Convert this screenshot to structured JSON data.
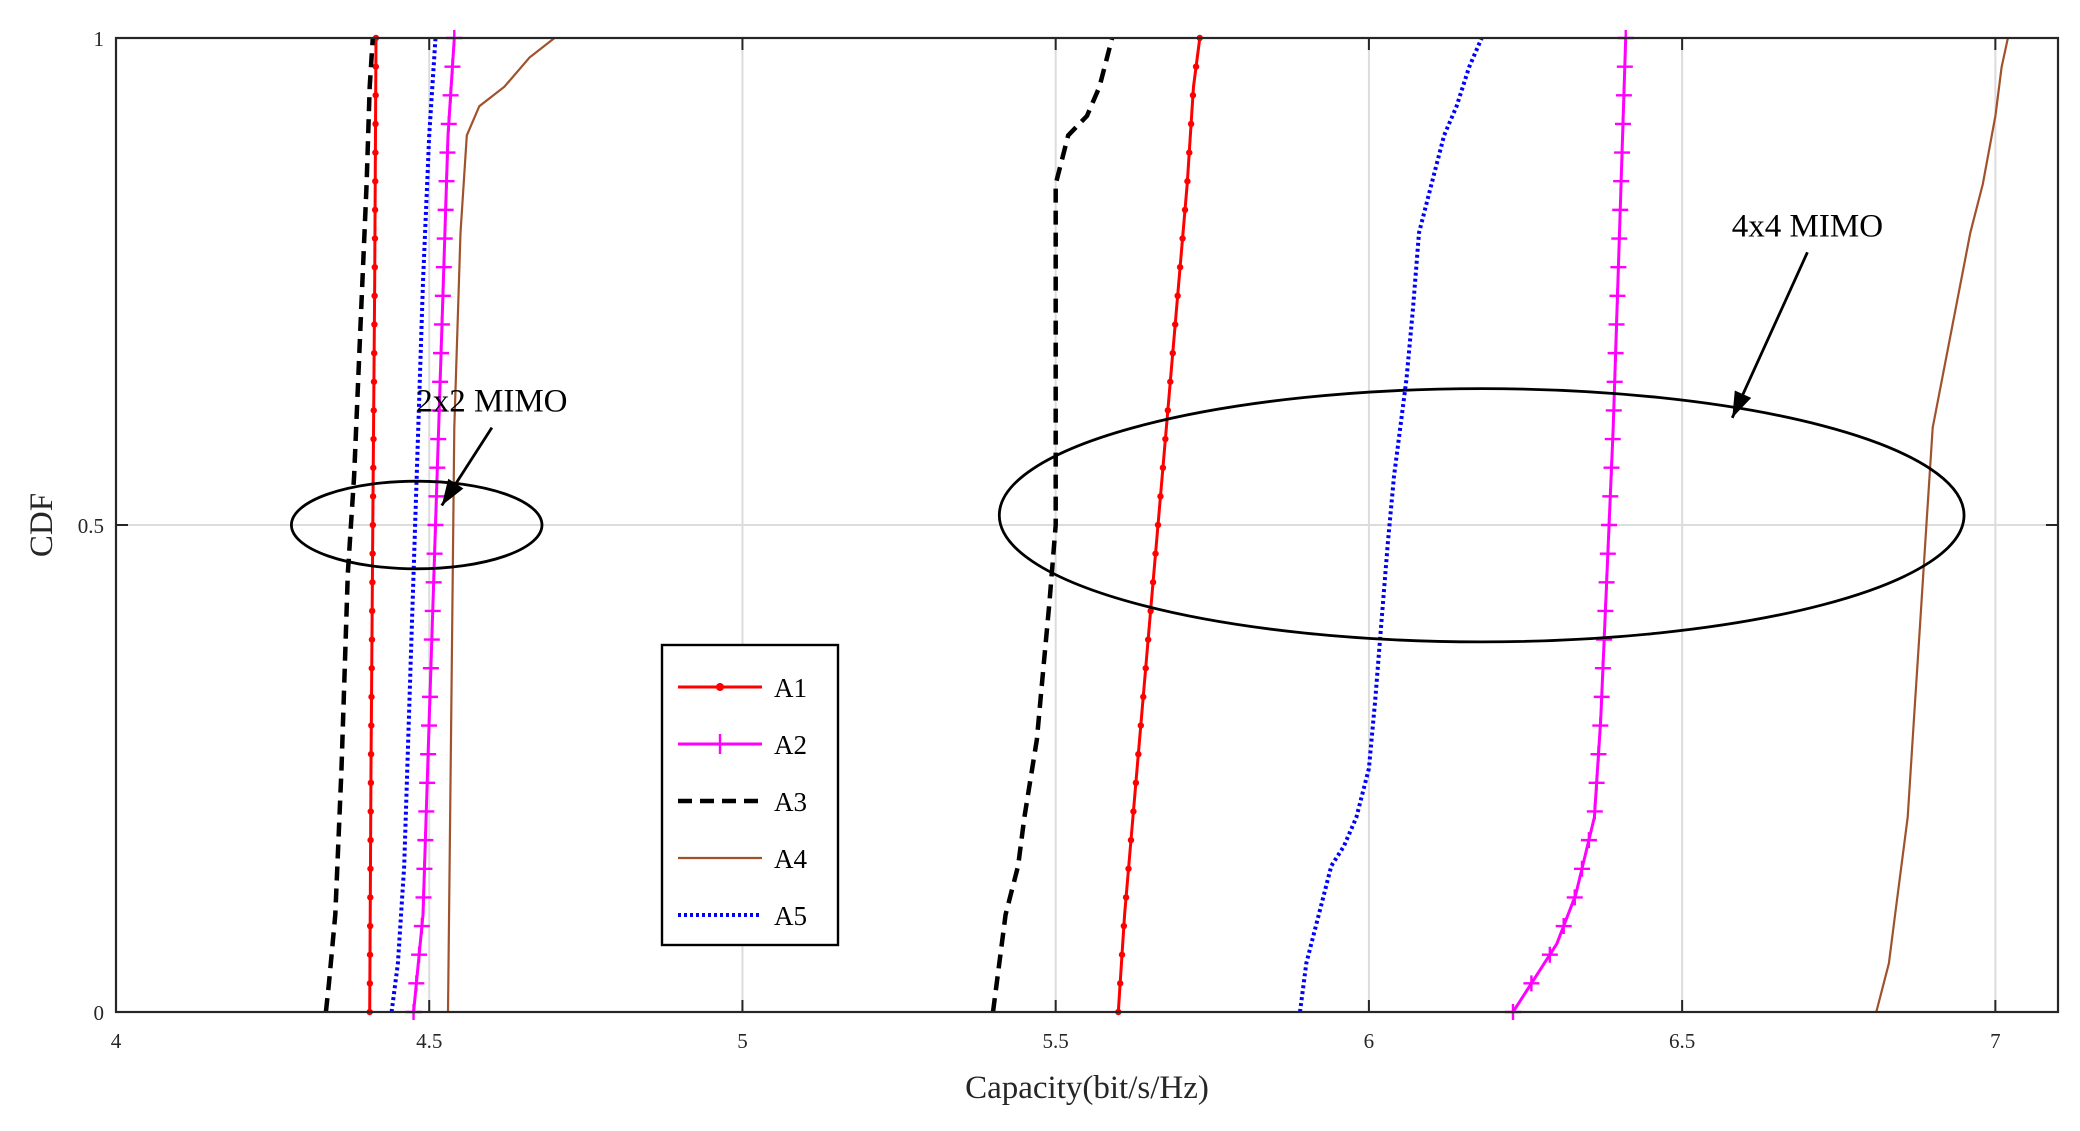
{
  "chart_data": {
    "type": "line",
    "title": "",
    "xlabel": "Capacity(bit/s/Hz)",
    "ylabel": "CDF",
    "xlim": [
      4,
      7.1
    ],
    "ylim": [
      0,
      1
    ],
    "xticks": [
      4,
      4.5,
      5,
      5.5,
      6,
      6.5,
      7
    ],
    "xtick_labels": [
      "4",
      "4.5",
      "5",
      "5.5",
      "6",
      "6.5",
      "7"
    ],
    "yticks": [
      0,
      0.5,
      1
    ],
    "ytick_labels": [
      "0",
      "0.5",
      "1"
    ],
    "grid": true,
    "legend_position": "lower-center",
    "series": [
      {
        "name": "A1",
        "color": "#ff0000",
        "style": "solid-dot",
        "group": "2x2 MIMO",
        "x": [
          4.405,
          4.407,
          4.41,
          4.413,
          4.415
        ],
        "y": [
          0,
          0.25,
          0.5,
          0.75,
          1
        ]
      },
      {
        "name": "A2",
        "color": "#ff00ff",
        "style": "solid-plus",
        "group": "2x2 MIMO",
        "x": [
          4.475,
          4.49,
          4.5,
          4.51,
          4.52,
          4.53,
          4.54
        ],
        "y": [
          0,
          0.1,
          0.3,
          0.5,
          0.7,
          0.9,
          1
        ]
      },
      {
        "name": "A3",
        "color": "#000000",
        "style": "dashed",
        "group": "2x2 MIMO",
        "x": [
          4.335,
          4.34,
          4.35,
          4.36,
          4.37,
          4.38,
          4.39,
          4.4,
          4.405,
          4.41
        ],
        "y": [
          0,
          0.03,
          0.1,
          0.25,
          0.45,
          0.55,
          0.7,
          0.85,
          0.95,
          1
        ]
      },
      {
        "name": "A4",
        "color": "#a0522d",
        "style": "solid",
        "group": "2x2 MIMO",
        "x": [
          4.53,
          4.535,
          4.54,
          4.55,
          4.56,
          4.58,
          4.62,
          4.66,
          4.7
        ],
        "y": [
          0,
          0.3,
          0.6,
          0.8,
          0.9,
          0.93,
          0.95,
          0.98,
          1
        ]
      },
      {
        "name": "A5",
        "color": "#0000ff",
        "style": "dotted",
        "group": "2x2 MIMO",
        "x": [
          4.44,
          4.45,
          4.46,
          4.47,
          4.48,
          4.49,
          4.5,
          4.51
        ],
        "y": [
          0,
          0.05,
          0.15,
          0.35,
          0.55,
          0.75,
          0.9,
          1
        ]
      },
      {
        "name": "A1",
        "color": "#ff0000",
        "style": "solid-dot",
        "group": "4x4 MIMO",
        "x": [
          5.6,
          5.61,
          5.63,
          5.65,
          5.67,
          5.69,
          5.71,
          5.72,
          5.73
        ],
        "y": [
          0,
          0.1,
          0.25,
          0.4,
          0.55,
          0.7,
          0.85,
          0.95,
          1
        ]
      },
      {
        "name": "A2",
        "color": "#ff00ff",
        "style": "solid-plus",
        "group": "4x4 MIMO",
        "x": [
          6.23,
          6.26,
          6.3,
          6.33,
          6.36,
          6.37,
          6.38,
          6.39,
          6.4,
          6.41
        ],
        "y": [
          0,
          0.03,
          0.07,
          0.12,
          0.2,
          0.3,
          0.45,
          0.6,
          0.8,
          1
        ]
      },
      {
        "name": "A3",
        "color": "#000000",
        "style": "dashed",
        "group": "4x4 MIMO",
        "x": [
          5.4,
          5.41,
          5.42,
          5.44,
          5.45,
          5.47,
          5.48,
          5.49,
          5.5,
          5.5,
          5.52,
          5.55,
          5.57,
          5.59
        ],
        "y": [
          0,
          0.05,
          0.1,
          0.15,
          0.2,
          0.28,
          0.35,
          0.42,
          0.5,
          0.85,
          0.9,
          0.92,
          0.95,
          1
        ]
      },
      {
        "name": "A4",
        "color": "#a0522d",
        "style": "solid",
        "group": "4x4 MIMO",
        "x": [
          6.81,
          6.83,
          6.84,
          6.86,
          6.87,
          6.88,
          6.89,
          6.9,
          6.93,
          6.96,
          6.98,
          7.0,
          7.01,
          7.02
        ],
        "y": [
          0,
          0.05,
          0.1,
          0.2,
          0.3,
          0.4,
          0.5,
          0.6,
          0.7,
          0.8,
          0.85,
          0.92,
          0.97,
          1
        ]
      },
      {
        "name": "A5",
        "color": "#0000ff",
        "style": "dotted",
        "group": "4x4 MIMO",
        "x": [
          5.89,
          5.9,
          5.92,
          5.94,
          5.96,
          5.98,
          6.0,
          6.01,
          6.02,
          6.03,
          6.04,
          6.06,
          6.07,
          6.08,
          6.1,
          6.12,
          6.14,
          6.16,
          6.18
        ],
        "y": [
          0,
          0.05,
          0.1,
          0.15,
          0.17,
          0.2,
          0.25,
          0.32,
          0.4,
          0.48,
          0.55,
          0.65,
          0.72,
          0.8,
          0.85,
          0.9,
          0.93,
          0.97,
          1
        ]
      }
    ],
    "legend": [
      "A1",
      "A2",
      "A3",
      "A4",
      "A5"
    ],
    "annotations": [
      {
        "text": "2x2 MIMO",
        "ellipse_center": [
          4.48,
          0.5
        ],
        "ellipse_semi_axes": [
          0.2,
          0.045
        ],
        "arrow_tail": [
          4.6,
          0.6
        ],
        "arrow_head": [
          4.52,
          0.52
        ]
      },
      {
        "text": "4x4 MIMO",
        "ellipse_center": [
          6.18,
          0.51
        ],
        "ellipse_semi_axes": [
          0.77,
          0.13
        ],
        "arrow_tail": [
          6.7,
          0.78
        ],
        "arrow_head": [
          6.58,
          0.61
        ]
      }
    ]
  }
}
